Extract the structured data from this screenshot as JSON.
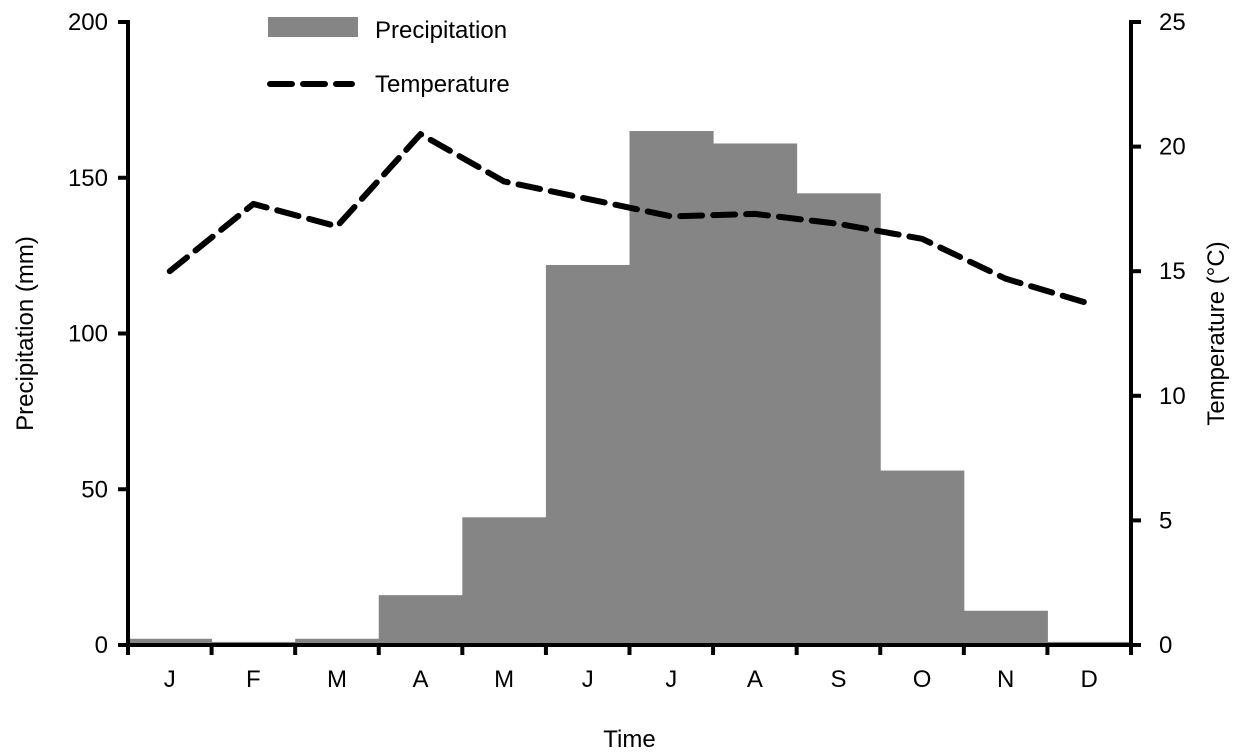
{
  "chart_data": {
    "type": "bar",
    "categories": [
      "J",
      "F",
      "M",
      "A",
      "M",
      "J",
      "J",
      "A",
      "S",
      "O",
      "N",
      "D"
    ],
    "series": [
      {
        "name": "Precipitation",
        "type": "bar",
        "axis": "left",
        "color": "#858585",
        "values": [
          2,
          1,
          2,
          16,
          41,
          122,
          165,
          161,
          145,
          56,
          11,
          1
        ]
      },
      {
        "name": "Temperature",
        "type": "line",
        "axis": "right",
        "color": "#000000",
        "style": "dashed",
        "values": [
          15.0,
          17.7,
          16.8,
          20.5,
          18.6,
          17.9,
          17.2,
          17.3,
          16.9,
          16.3,
          14.7,
          13.7
        ]
      }
    ],
    "xlabel": "Time",
    "ylabel_left": "Precipitation (mm)",
    "ylabel_right": "Temperature (°C)",
    "ylim_left": [
      0,
      200
    ],
    "ylim_right": [
      0,
      25
    ],
    "yticks_left": [
      0,
      50,
      100,
      150,
      200
    ],
    "yticks_right": [
      0,
      5,
      10,
      15,
      20,
      25
    ],
    "grid": false,
    "legend_position": "top-left"
  }
}
